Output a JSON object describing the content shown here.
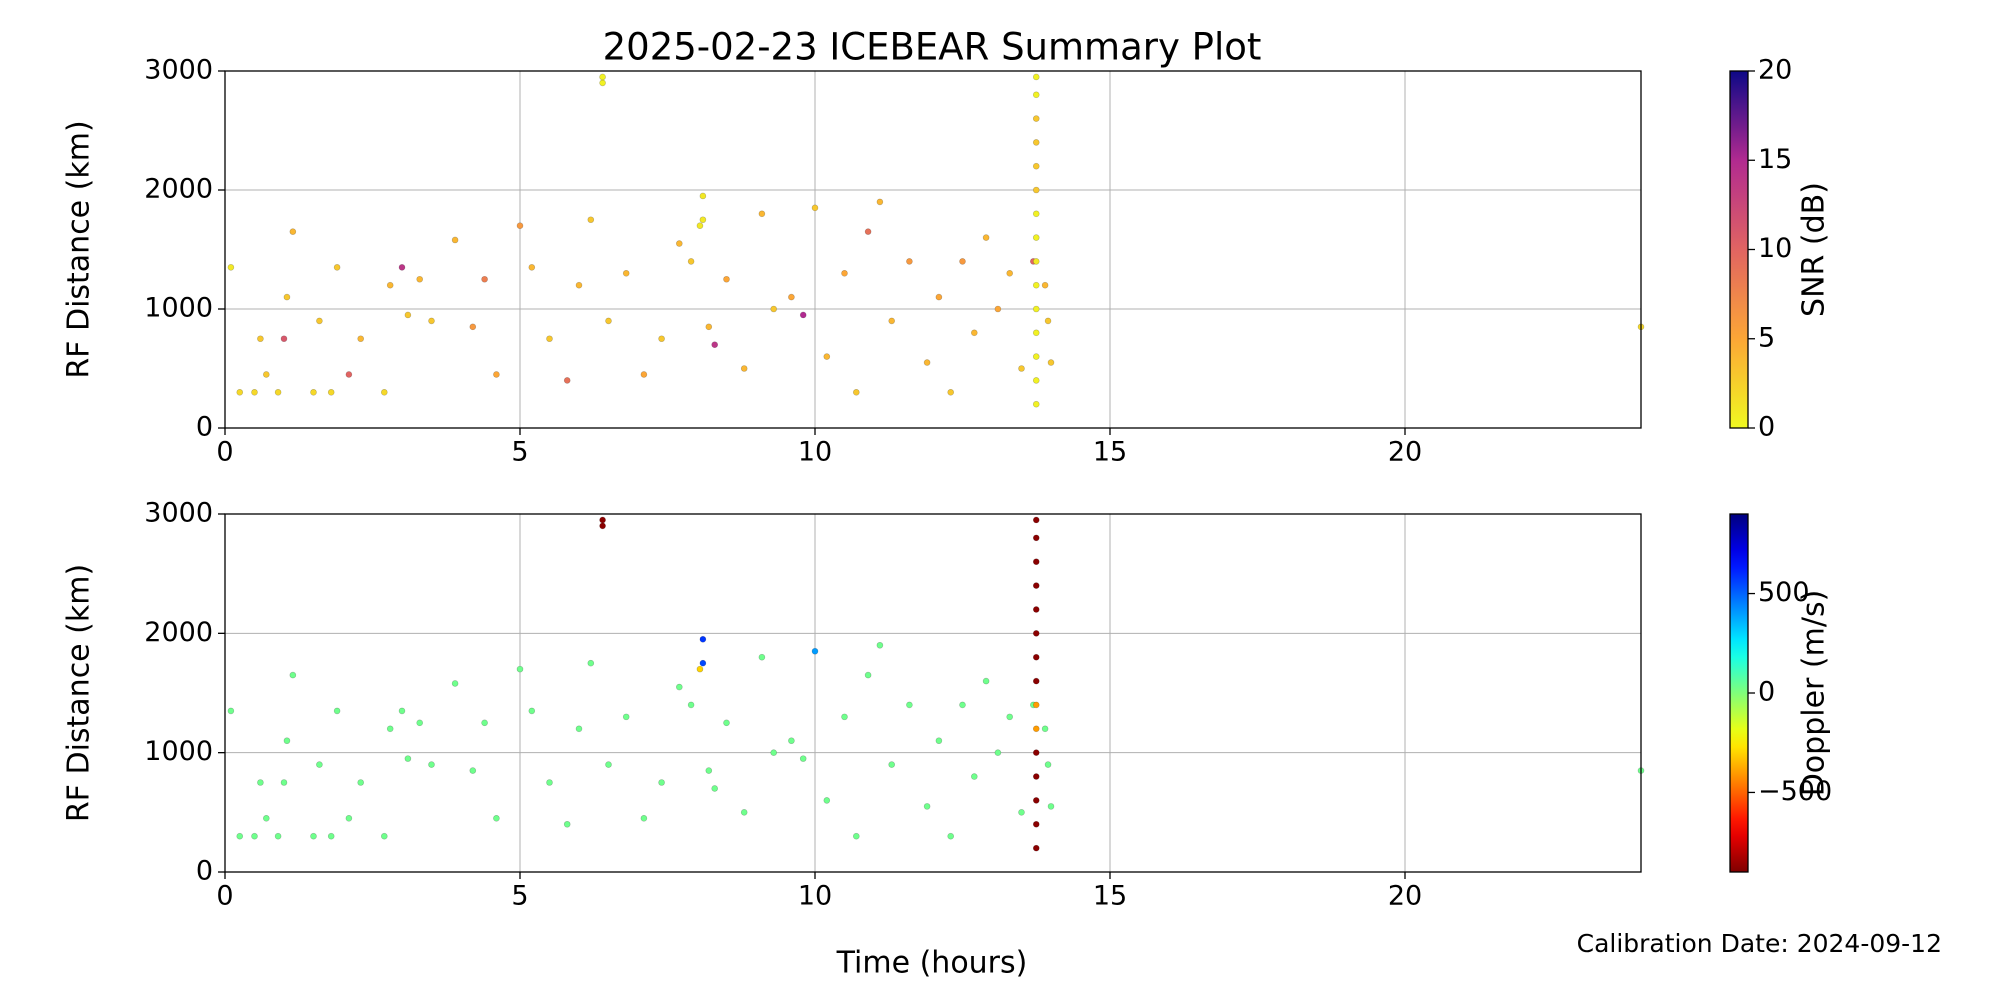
{
  "title": "2025-02-23 ICEBEAR Summary Plot",
  "xlabel": "Time (hours)",
  "annotation": "Calibration Date: 2024-09-12",
  "chart_data": [
    {
      "type": "scatter",
      "ylabel": "RF Distance (km)",
      "xlim": [
        0,
        24
      ],
      "ylim": [
        0,
        3000
      ],
      "xticks": [
        0,
        5,
        10,
        15,
        20
      ],
      "yticks": [
        0,
        1000,
        2000,
        3000
      ],
      "grid": true,
      "x": [
        0.1,
        0.25,
        0.5,
        0.6,
        0.7,
        0.9,
        1.0,
        1.05,
        1.15,
        1.5,
        1.6,
        1.8,
        1.9,
        2.1,
        2.3,
        2.7,
        2.8,
        3.0,
        3.1,
        3.3,
        3.5,
        3.9,
        4.2,
        4.4,
        4.6,
        5.0,
        5.2,
        5.5,
        5.8,
        6.0,
        6.2,
        6.4,
        6.4,
        6.5,
        6.8,
        7.1,
        7.4,
        7.7,
        7.9,
        8.05,
        8.1,
        8.1,
        8.2,
        8.3,
        8.5,
        8.8,
        9.1,
        9.3,
        9.6,
        9.8,
        10.0,
        10.2,
        10.5,
        10.7,
        10.9,
        11.1,
        11.3,
        11.6,
        11.9,
        12.1,
        12.3,
        12.5,
        12.7,
        12.9,
        13.1,
        13.3,
        13.5,
        13.7,
        13.9,
        13.95,
        14.0,
        24.0,
        13.75,
        13.75,
        13.75,
        13.75,
        13.75,
        13.75,
        13.75,
        13.75,
        13.75,
        13.75,
        13.75,
        13.75,
        13.75,
        13.75,
        13.75
      ],
      "y": [
        1350,
        300,
        300,
        750,
        450,
        300,
        750,
        1100,
        1650,
        300,
        900,
        300,
        1350,
        450,
        750,
        300,
        1200,
        1350,
        950,
        1250,
        900,
        1580,
        850,
        1250,
        450,
        1700,
        1350,
        750,
        400,
        1200,
        1750,
        2900,
        2950,
        900,
        1300,
        450,
        750,
        1550,
        1400,
        1700,
        1750,
        1950,
        850,
        700,
        1250,
        500,
        1800,
        1000,
        1100,
        950,
        1850,
        600,
        1300,
        300,
        1650,
        1900,
        900,
        1400,
        550,
        1100,
        300,
        1400,
        800,
        1600,
        1000,
        1300,
        500,
        1400,
        1200,
        900,
        550,
        850,
        200,
        400,
        600,
        800,
        1000,
        1200,
        1400,
        1600,
        1800,
        2000,
        2200,
        2400,
        2600,
        2800,
        2950
      ],
      "c": [
        1,
        2,
        2,
        3,
        3,
        2,
        11,
        3,
        4,
        2,
        3,
        2,
        3,
        10,
        4,
        2,
        4,
        14,
        3,
        4,
        3,
        4,
        6,
        8,
        5,
        6,
        4,
        3,
        9,
        4,
        3,
        0.5,
        0.5,
        3,
        4,
        5,
        3,
        4,
        3,
        1,
        1,
        1,
        4,
        14,
        5,
        4,
        4,
        3,
        5,
        15,
        3,
        4,
        5,
        3,
        9,
        4,
        4,
        6,
        4,
        5,
        3,
        6,
        4,
        4,
        5,
        4,
        3,
        10,
        4,
        3,
        3,
        2,
        0.5,
        0.5,
        0.5,
        0.5,
        0.5,
        0.5,
        1,
        0.5,
        0.5,
        3,
        3,
        3,
        3,
        0.5,
        0.5
      ],
      "colorbar": {
        "label": "SNR (dB)",
        "colormap": "plasma_r",
        "lim": [
          0,
          20
        ],
        "ticks": [
          0,
          5,
          10,
          15,
          20
        ]
      }
    },
    {
      "type": "scatter",
      "ylabel": "RF Distance (km)",
      "xlim": [
        0,
        24
      ],
      "ylim": [
        0,
        3000
      ],
      "xticks": [
        0,
        5,
        10,
        15,
        20
      ],
      "yticks": [
        0,
        1000,
        2000,
        3000
      ],
      "grid": true,
      "x": [
        0.1,
        0.25,
        0.5,
        0.6,
        0.7,
        0.9,
        1.0,
        1.05,
        1.15,
        1.5,
        1.6,
        1.8,
        1.9,
        2.1,
        2.3,
        2.7,
        2.8,
        3.0,
        3.1,
        3.3,
        3.5,
        3.9,
        4.2,
        4.4,
        4.6,
        5.0,
        5.2,
        5.5,
        5.8,
        6.0,
        6.2,
        6.4,
        6.4,
        6.5,
        6.8,
        7.1,
        7.4,
        7.7,
        7.9,
        8.05,
        8.1,
        8.1,
        8.2,
        8.3,
        8.5,
        8.8,
        9.1,
        9.3,
        9.6,
        9.8,
        10.0,
        10.2,
        10.5,
        10.7,
        10.9,
        11.1,
        11.3,
        11.6,
        11.9,
        12.1,
        12.3,
        12.5,
        12.7,
        12.9,
        13.1,
        13.3,
        13.5,
        13.7,
        13.9,
        13.95,
        14.0,
        24.0,
        13.75,
        13.75,
        13.75,
        13.75,
        13.75,
        13.75,
        13.75,
        13.75,
        13.75,
        13.75,
        13.75,
        13.75,
        13.75,
        13.75,
        13.75
      ],
      "y": [
        1350,
        300,
        300,
        750,
        450,
        300,
        750,
        1100,
        1650,
        300,
        900,
        300,
        1350,
        450,
        750,
        300,
        1200,
        1350,
        950,
        1250,
        900,
        1580,
        850,
        1250,
        450,
        1700,
        1350,
        750,
        400,
        1200,
        1750,
        2900,
        2950,
        900,
        1300,
        450,
        750,
        1550,
        1400,
        1700,
        1750,
        1950,
        850,
        700,
        1250,
        500,
        1800,
        1000,
        1100,
        950,
        1850,
        600,
        1300,
        300,
        1650,
        1900,
        900,
        1400,
        550,
        1100,
        300,
        1400,
        800,
        1600,
        1000,
        1300,
        500,
        1400,
        1200,
        900,
        550,
        850,
        200,
        400,
        600,
        800,
        1000,
        1200,
        1400,
        1600,
        1800,
        2000,
        2200,
        2400,
        2600,
        2800,
        2950
      ],
      "c": [
        30,
        30,
        30,
        30,
        30,
        30,
        30,
        30,
        30,
        30,
        30,
        30,
        30,
        30,
        30,
        30,
        30,
        30,
        30,
        30,
        30,
        30,
        30,
        30,
        30,
        30,
        30,
        30,
        30,
        30,
        30,
        -880,
        -880,
        30,
        30,
        30,
        30,
        30,
        30,
        -300,
        550,
        580,
        30,
        30,
        30,
        30,
        30,
        30,
        30,
        30,
        400,
        30,
        30,
        30,
        30,
        30,
        30,
        30,
        30,
        30,
        30,
        30,
        30,
        30,
        30,
        30,
        30,
        30,
        30,
        30,
        30,
        30,
        -880,
        -880,
        -880,
        -880,
        -880,
        -400,
        -400,
        -880,
        -880,
        -880,
        -880,
        -880,
        -880,
        -880,
        -880
      ],
      "colorbar": {
        "label": "Doppler (m/s)",
        "colormap": "jet_r",
        "lim": [
          -900,
          900
        ],
        "ticks": [
          {
            "value": -500,
            "label": "−500"
          },
          0,
          500
        ]
      }
    }
  ]
}
